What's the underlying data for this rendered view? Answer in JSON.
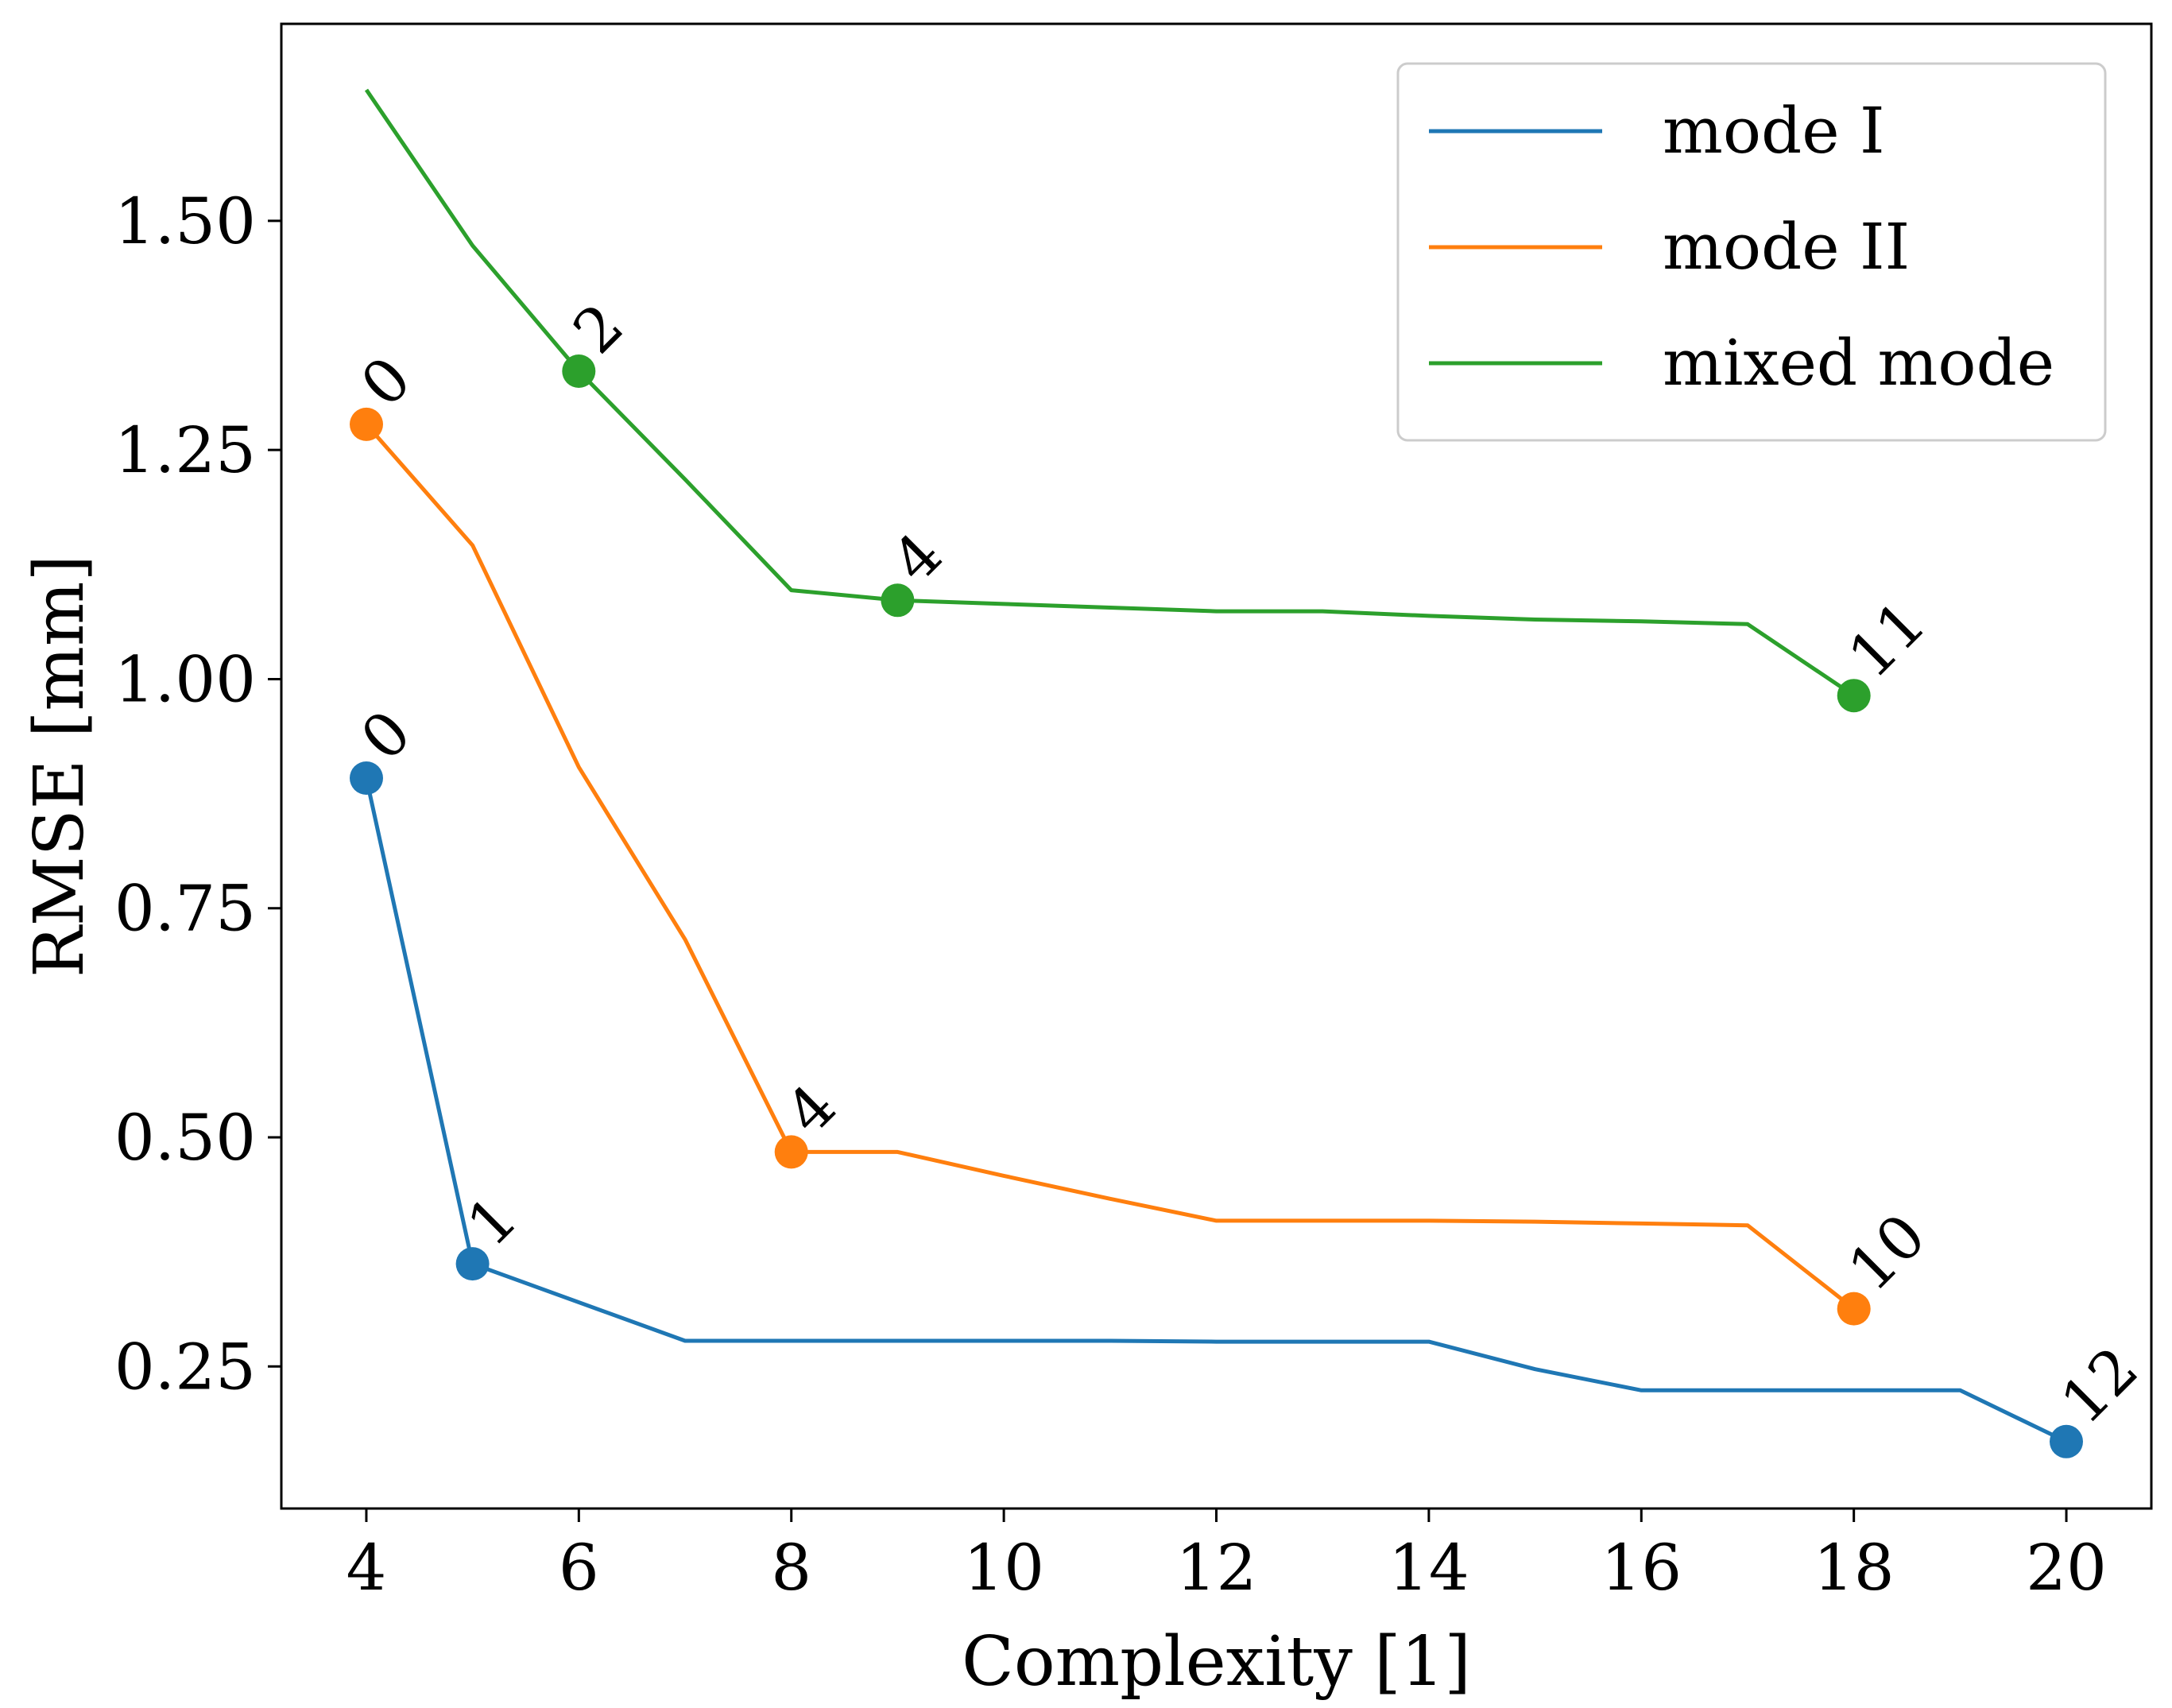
{
  "chart_data": {
    "type": "line",
    "title": "",
    "xlabel": "Complexity [1]",
    "ylabel": "RMSE [mm]",
    "xlim": [
      3.2,
      20.8
    ],
    "ylim": [
      0.095,
      1.715
    ],
    "xticks": [
      4,
      6,
      8,
      10,
      12,
      14,
      16,
      18,
      20
    ],
    "xtick_labels": [
      "4",
      "6",
      "8",
      "10",
      "12",
      "14",
      "16",
      "18",
      "20"
    ],
    "yticks": [
      0.25,
      0.5,
      0.75,
      1.0,
      1.25,
      1.5
    ],
    "ytick_labels": [
      "0.25",
      "0.50",
      "0.75",
      "1.00",
      "1.25",
      "1.50"
    ],
    "grid": false,
    "legend_position": "top-right",
    "series": [
      {
        "name": "mode I",
        "color": "#1f77b4",
        "x": [
          4,
          5,
          7,
          8,
          9,
          10,
          11,
          12,
          13,
          14,
          15,
          16,
          17,
          18,
          19,
          20
        ],
        "y": [
          0.892,
          0.362,
          0.278,
          0.278,
          0.278,
          0.278,
          0.278,
          0.277,
          0.277,
          0.277,
          0.247,
          0.224,
          0.224,
          0.224,
          0.224,
          0.168
        ],
        "highlighted": [
          {
            "x": 4,
            "y": 0.892,
            "label": "0"
          },
          {
            "x": 5,
            "y": 0.362,
            "label": "1"
          },
          {
            "x": 20,
            "y": 0.168,
            "label": "12"
          }
        ]
      },
      {
        "name": "mode II",
        "color": "#ff7f0e",
        "x": [
          4,
          5,
          6,
          7,
          8,
          9,
          10,
          11,
          12,
          13,
          14,
          15,
          16,
          17,
          18
        ],
        "y": [
          1.278,
          1.146,
          0.904,
          0.716,
          0.484,
          0.484,
          0.458,
          0.433,
          0.409,
          0.409,
          0.409,
          0.408,
          0.406,
          0.404,
          0.313
        ],
        "highlighted": [
          {
            "x": 4,
            "y": 1.278,
            "label": "0"
          },
          {
            "x": 8,
            "y": 0.484,
            "label": "4"
          },
          {
            "x": 18,
            "y": 0.313,
            "label": "10"
          }
        ]
      },
      {
        "name": "mixed mode",
        "color": "#2ca02c",
        "x": [
          4,
          5,
          6,
          7,
          8,
          9,
          10,
          11,
          12,
          13,
          14,
          15,
          16,
          17,
          18
        ],
        "y": [
          1.643,
          1.473,
          1.336,
          1.218,
          1.097,
          1.086,
          1.082,
          1.078,
          1.074,
          1.074,
          1.069,
          1.065,
          1.063,
          1.06,
          0.982
        ],
        "highlighted": [
          {
            "x": 6,
            "y": 1.336,
            "label": "2"
          },
          {
            "x": 9,
            "y": 1.086,
            "label": "4"
          },
          {
            "x": 18,
            "y": 0.982,
            "label": "11"
          }
        ]
      }
    ]
  }
}
